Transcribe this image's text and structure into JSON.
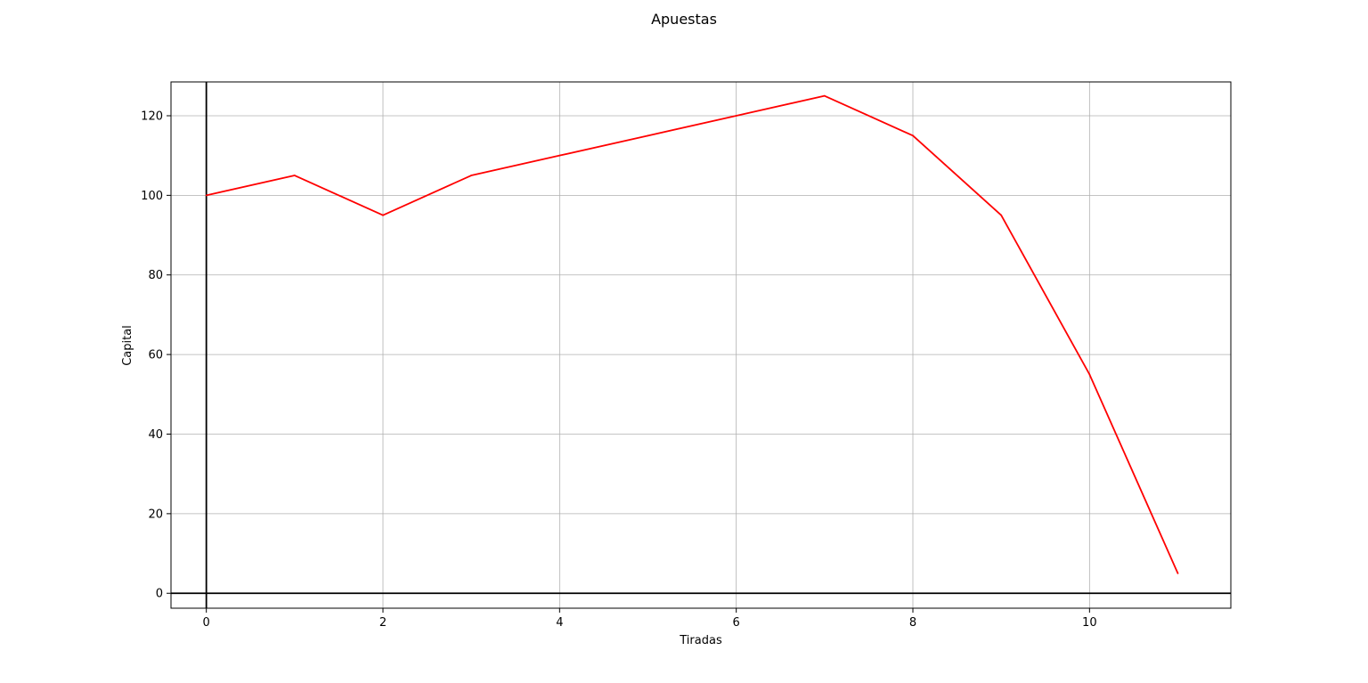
{
  "chart_data": {
    "type": "line",
    "title": "Apuestas",
    "xlabel": "Tiradas",
    "ylabel": "Capital",
    "xlim": [
      -0.4,
      11.6
    ],
    "ylim": [
      -3.75,
      128.5
    ],
    "xticks": [
      0,
      2,
      4,
      6,
      8,
      10
    ],
    "yticks": [
      0,
      20,
      40,
      60,
      80,
      100,
      120
    ],
    "grid": true,
    "reference_lines": {
      "horizontal": 0,
      "vertical": 0,
      "color": "#000000"
    },
    "series": [
      {
        "color": "#ff0000",
        "x": [
          0,
          1,
          2,
          3,
          4,
          5,
          6,
          7,
          8,
          9,
          10,
          11
        ],
        "y": [
          100,
          105,
          95,
          105,
          110,
          115,
          120,
          125,
          115,
          95,
          55,
          5
        ]
      }
    ]
  }
}
